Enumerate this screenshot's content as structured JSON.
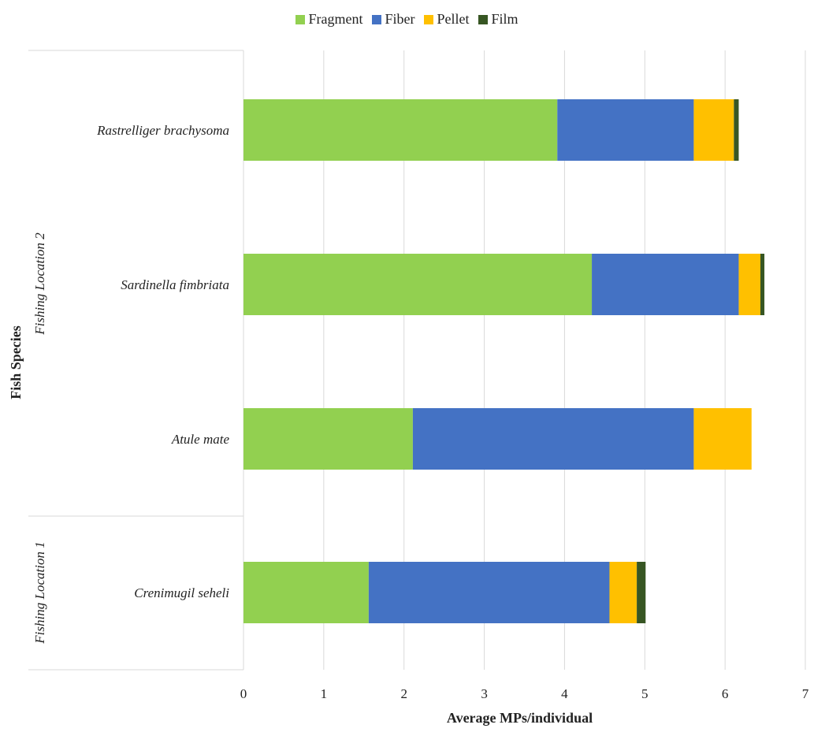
{
  "chart_data": {
    "type": "bar",
    "orientation": "horizontal",
    "stacked": true,
    "title": "",
    "xlabel": "Average MPs/individual",
    "ylabel": "Fish Species",
    "xlim": [
      0,
      7
    ],
    "xticks": [
      0,
      1,
      2,
      3,
      4,
      5,
      6,
      7
    ],
    "grid": "vertical",
    "legend_position": "top-center",
    "categories": [
      "Rastrelliger brachysoma",
      "Sardinella fimbriata",
      "Atule mate",
      "Crenimugil seheli"
    ],
    "groups": [
      {
        "label": "Fishing Location 2",
        "categories": [
          "Rastrelliger brachysoma",
          "Sardinella fimbriata",
          "Atule mate"
        ]
      },
      {
        "label": "Fishing Location 1",
        "categories": [
          "Crenimugil seheli"
        ]
      }
    ],
    "series": [
      {
        "name": "Fragment",
        "color": "#92D050",
        "values": [
          3.91,
          4.34,
          2.11,
          1.56
        ]
      },
      {
        "name": "Fiber",
        "color": "#4472C4",
        "values": [
          1.7,
          1.83,
          3.5,
          3.0
        ]
      },
      {
        "name": "Pellet",
        "color": "#FFC000",
        "values": [
          0.5,
          0.27,
          0.72,
          0.34
        ]
      },
      {
        "name": "Film",
        "color": "#375623",
        "values": [
          0.06,
          0.05,
          0.0,
          0.11
        ]
      }
    ]
  }
}
